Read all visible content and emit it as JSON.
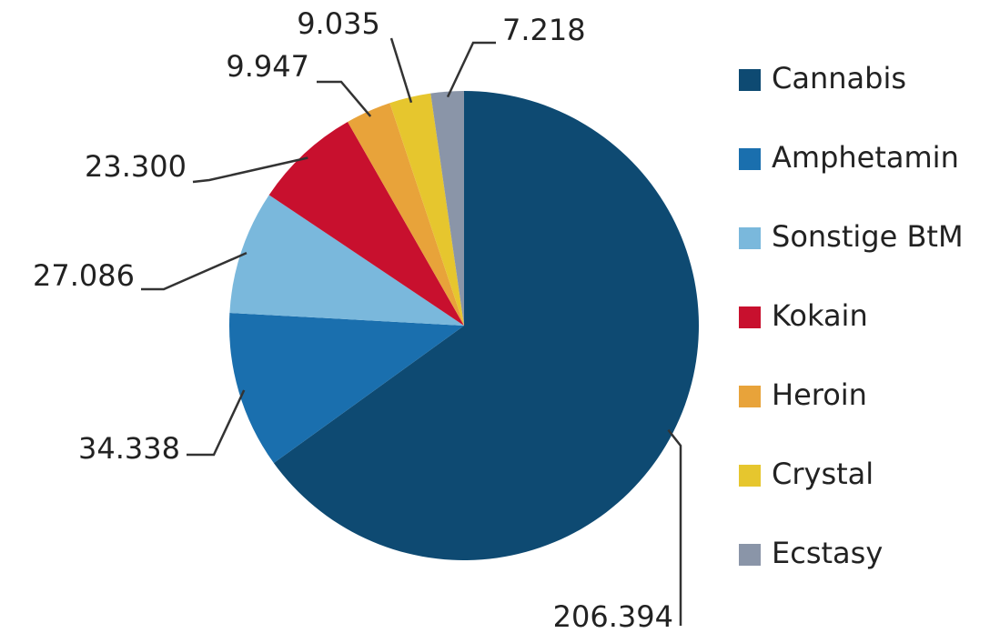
{
  "chart_data": {
    "type": "pie",
    "categories": [
      "Cannabis",
      "Amphetamin",
      "Sonstige BtM",
      "Kokain",
      "Heroin",
      "Crystal",
      "Ecstasy"
    ],
    "values": [
      206394,
      34338,
      27086,
      23300,
      9947,
      9035,
      7218
    ],
    "value_labels": [
      "206.394",
      "34.338",
      "27.086",
      "23.300",
      "9.947",
      "9.035",
      "7.218"
    ],
    "colors": [
      "#0e4a72",
      "#1a6fae",
      "#7ab8dc",
      "#c8102e",
      "#e8a33a",
      "#e6c62e",
      "#8a95a8"
    ],
    "legend": "right"
  }
}
